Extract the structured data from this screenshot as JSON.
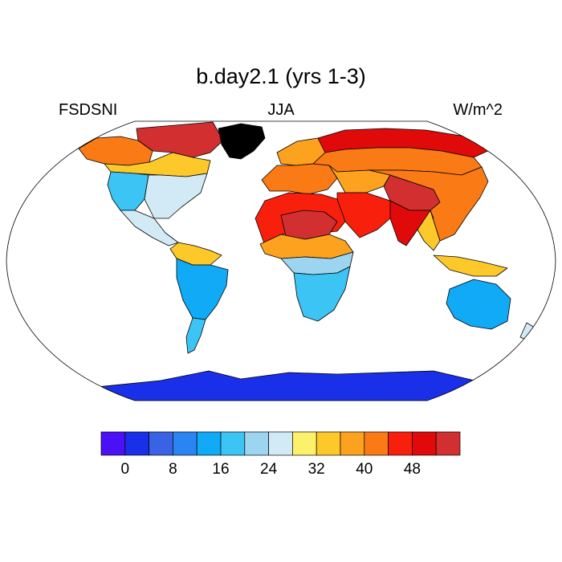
{
  "header": {
    "title": "b.day2.1 (yrs 1-3)",
    "left_label": "FSDSNI",
    "center_label": "JJA",
    "right_label": "W/m^2"
  },
  "map": {
    "projection": "robinson",
    "ocean_color": "#ffffff",
    "regions": [
      {
        "name": "greenland",
        "level": 15
      },
      {
        "name": "canadian-arctic",
        "level": 14
      },
      {
        "name": "alaska-nw-canada",
        "level": 11
      },
      {
        "name": "central-canada",
        "level": 9
      },
      {
        "name": "western-us",
        "level": 5
      },
      {
        "name": "eastern-us",
        "level": 7
      },
      {
        "name": "mexico-central-america",
        "level": 7
      },
      {
        "name": "northern-south-america",
        "level": 9
      },
      {
        "name": "south-america",
        "level": 4
      },
      {
        "name": "patagonia",
        "level": 5
      },
      {
        "name": "europe",
        "level": 11
      },
      {
        "name": "northern-europe",
        "level": 10
      },
      {
        "name": "siberia",
        "level": 11
      },
      {
        "name": "arctic-siberia",
        "level": 13
      },
      {
        "name": "central-asia",
        "level": 10
      },
      {
        "name": "tibet",
        "level": 14
      },
      {
        "name": "china",
        "level": 11
      },
      {
        "name": "india",
        "level": 13
      },
      {
        "name": "middle-east",
        "level": 12
      },
      {
        "name": "sahara",
        "level": 12
      },
      {
        "name": "sahara-hot",
        "level": 14
      },
      {
        "name": "sahel",
        "level": 10
      },
      {
        "name": "central-africa",
        "level": 6
      },
      {
        "name": "southern-africa",
        "level": 5
      },
      {
        "name": "southeast-asia",
        "level": 9
      },
      {
        "name": "indonesia",
        "level": 9
      },
      {
        "name": "australia",
        "level": 4
      },
      {
        "name": "new-zealand",
        "level": 7
      },
      {
        "name": "antarctica",
        "level": 1
      }
    ]
  },
  "colorbar": {
    "colors": [
      "#4b10f5",
      "#1a2fe8",
      "#3a62e4",
      "#2a85f2",
      "#10aaf6",
      "#3cc4f4",
      "#9dd4ef",
      "#d2eaf5",
      "#fdf06a",
      "#fdc82a",
      "#fca21e",
      "#fa7a16",
      "#f8200c",
      "#e00a0a",
      "#d23030"
    ],
    "tick_labels": [
      "0",
      "8",
      "16",
      "24",
      "32",
      "40",
      "48"
    ],
    "tick_values": [
      0,
      8,
      16,
      24,
      32,
      40,
      48
    ],
    "min": -4,
    "max": 56
  }
}
